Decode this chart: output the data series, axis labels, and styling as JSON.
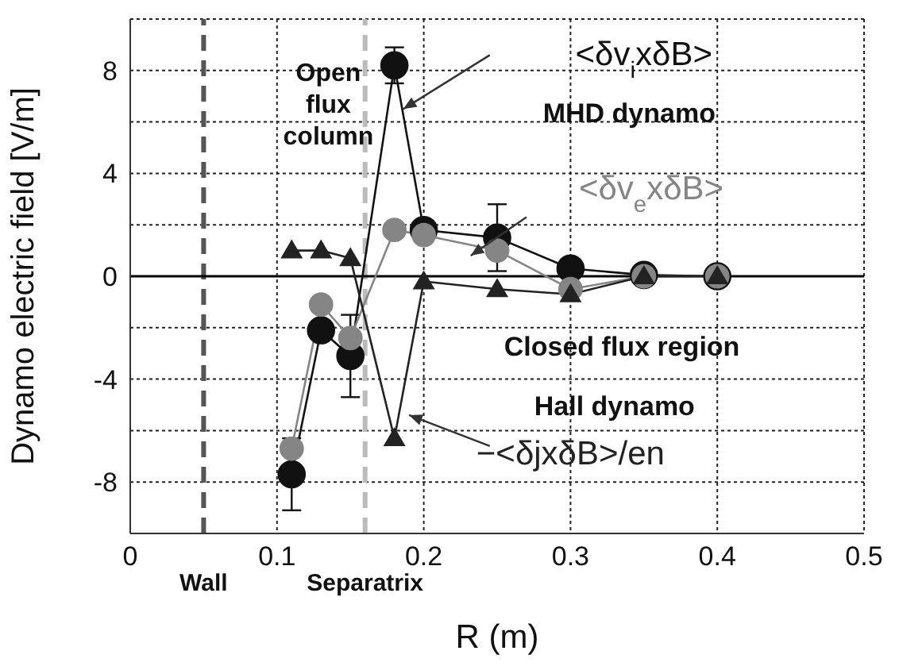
{
  "chart_data": {
    "type": "line",
    "xlabel": "R (m)",
    "ylabel": "Dynamo electric field [V/m]",
    "xlim": [
      0,
      0.5
    ],
    "xticks": [
      0,
      0.1,
      0.2,
      0.3,
      0.4,
      0.5
    ],
    "ylim": [
      -10,
      10
    ],
    "yticks": [
      -8,
      {
        "value": -6,
        "label": null
      },
      -4,
      {
        "value": -2,
        "label": null
      },
      0,
      {
        "value": 2,
        "label": null
      },
      4,
      {
        "value": 6,
        "label": null
      },
      8
    ],
    "x": [
      0.11,
      0.13,
      0.15,
      0.18,
      0.2,
      0.25,
      0.3,
      0.35,
      0.4
    ],
    "series": [
      {
        "name": "<δv$_{i}$xδB>",
        "color": "#111111",
        "marker": "circle",
        "values": [
          -7.7,
          -2.1,
          -3.1,
          8.2,
          1.8,
          1.5,
          0.3,
          0.05,
          0.0
        ],
        "errors": [
          1.4,
          null,
          1.6,
          0.7,
          null,
          1.3,
          null,
          null,
          null
        ]
      },
      {
        "name": "<δv$_{e}$xδB>",
        "color": "#858585",
        "marker": "circle",
        "values": [
          -6.7,
          -1.1,
          -2.4,
          1.8,
          1.6,
          1.0,
          -0.5,
          0.0,
          0.0
        ]
      },
      {
        "name": "−<δjxδB>/en",
        "color": "#222222",
        "marker": "triangle",
        "values": [
          1.0,
          1.0,
          0.7,
          -6.3,
          -0.2,
          -0.5,
          -0.7,
          0.0,
          0.0
        ]
      }
    ],
    "ref_lines": [
      {
        "axis": "x",
        "value": 0.05,
        "label": "Wall",
        "color": "#555555",
        "line_style": "dashed"
      },
      {
        "axis": "x",
        "value": 0.16,
        "label": "Separatrix",
        "color": "#bbbbbb",
        "line_style": "dashed"
      },
      {
        "axis": "y",
        "value": 0,
        "label": null,
        "color": "#000000",
        "line_style": "solid"
      }
    ],
    "annotations": [
      "Open flux column",
      "MHD dynamo",
      "Closed flux region",
      "Hall dynamo"
    ],
    "grid": true
  }
}
